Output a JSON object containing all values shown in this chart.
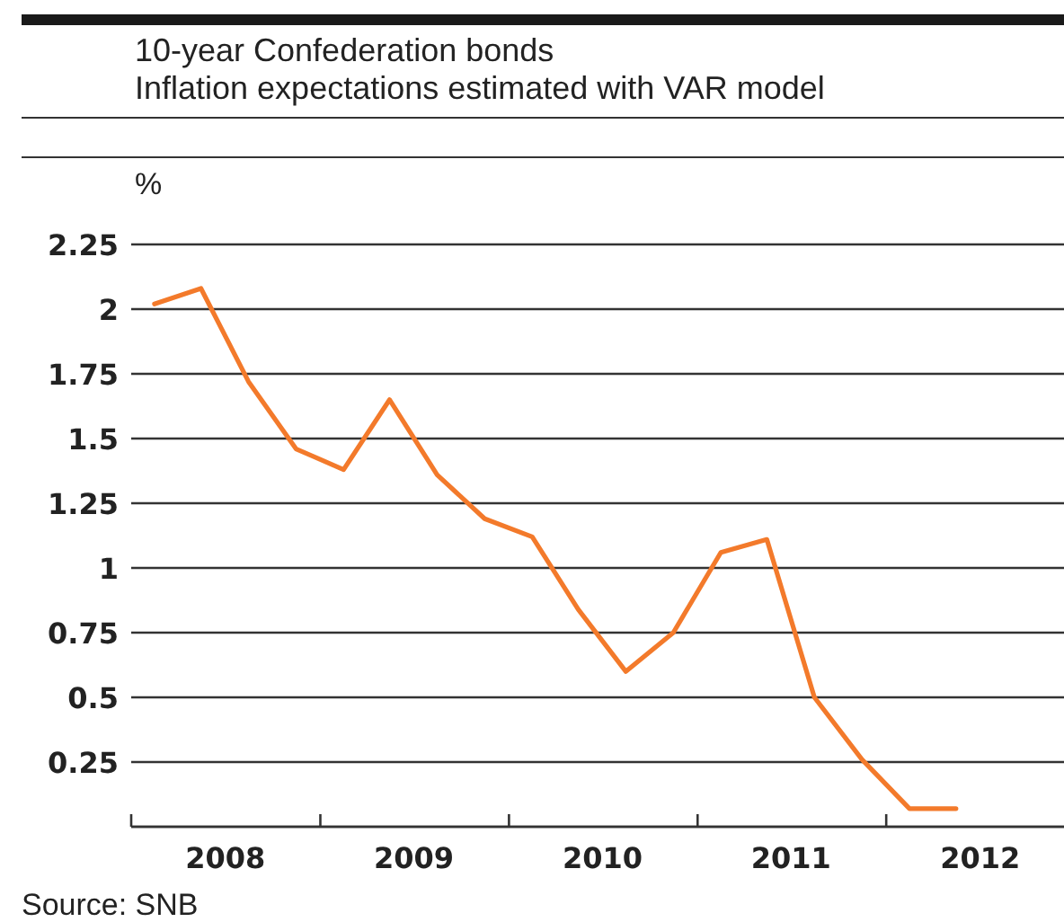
{
  "chart_data": {
    "type": "line",
    "title": "10-year Confederation bonds",
    "subtitle": "Inflation expectations estimated with VAR model",
    "ylabel": "%",
    "x": [
      "2008-02-15",
      "2008-05-15",
      "2008-08-15",
      "2008-11-15",
      "2009-02-15",
      "2009-05-15",
      "2009-08-15",
      "2009-11-15",
      "2010-02-15",
      "2010-05-15",
      "2010-08-15",
      "2010-11-15",
      "2011-02-15",
      "2011-05-15",
      "2011-08-15",
      "2011-11-15",
      "2012-02-15",
      "2012-05-15"
    ],
    "series": [
      {
        "color": "#f37a2b",
        "values": [
          2.02,
          2.08,
          1.72,
          1.46,
          1.38,
          1.65,
          1.36,
          1.19,
          1.12,
          0.84,
          0.6,
          0.75,
          1.06,
          1.11,
          0.5,
          0.26,
          0.07,
          0.07
        ]
      }
    ],
    "xlim": [
      "2008-01-01",
      "2012-12-10"
    ],
    "xticks": [
      {
        "value": "2008-01-01",
        "label": null
      },
      {
        "value": "2008-07-01",
        "label": "2008"
      },
      {
        "value": "2009-01-01",
        "label": null
      },
      {
        "value": "2009-07-01",
        "label": "2009"
      },
      {
        "value": "2010-01-01",
        "label": null
      },
      {
        "value": "2010-07-01",
        "label": "2010"
      },
      {
        "value": "2011-01-01",
        "label": null
      },
      {
        "value": "2011-07-01",
        "label": "2011"
      },
      {
        "value": "2012-01-01",
        "label": null
      },
      {
        "value": "2012-07-01",
        "label": "2012"
      }
    ],
    "ylim": [
      0,
      2.25
    ],
    "yticks": [
      0.25,
      0.5,
      0.75,
      1,
      1.25,
      1.5,
      1.75,
      2,
      2.25
    ],
    "grid": "y",
    "marker": "none",
    "line_style": "solid",
    "annotations": [
      "Source: SNB"
    ]
  }
}
